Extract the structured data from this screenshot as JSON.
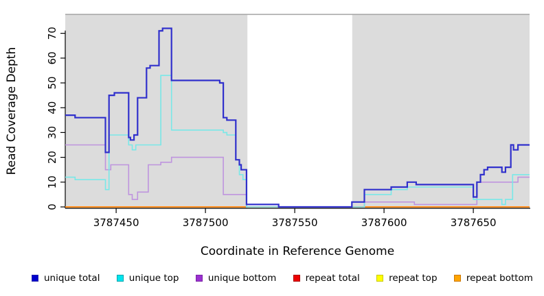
{
  "chart_data": {
    "type": "line",
    "line_style": "step-post",
    "title": "",
    "xlabel": "Coordinate in Reference Genome",
    "ylabel": "Read Coverage Depth",
    "xlim": [
      3787421.5,
      3787681.5
    ],
    "ylim": [
      0,
      77.5
    ],
    "x_ticks": [
      {
        "value": 3787450,
        "label": "3787450"
      },
      {
        "value": 3787500,
        "label": "3787500"
      },
      {
        "value": 3787550,
        "label": "3787550"
      },
      {
        "value": 3787600,
        "label": "3787600"
      },
      {
        "value": 3787650,
        "label": "3787650"
      }
    ],
    "y_ticks": [
      0,
      10,
      20,
      30,
      40,
      50,
      60,
      70
    ],
    "band_color": "#DCDCDC",
    "top_border_color": "#A3A3A3",
    "bands": [
      {
        "from": 3787421.5,
        "to": 3787523.5
      },
      {
        "from": 3787582.2,
        "to": 3787681.5
      }
    ],
    "series": [
      {
        "name": "repeat total",
        "color": "#DD0000",
        "width": 1.5,
        "steps": [
          [
            3787421.5,
            0
          ]
        ]
      },
      {
        "name": "repeat top",
        "color": "#F2F200",
        "width": 1.5,
        "steps": [
          [
            3787421.5,
            0
          ]
        ]
      },
      {
        "name": "repeat bottom",
        "color": "#FF8C1A",
        "width": 2,
        "steps": [
          [
            3787421.5,
            0
          ]
        ]
      },
      {
        "name": "unique bottom",
        "color": "#BE94DE",
        "width": 1.6,
        "steps": [
          [
            3787421.5,
            25
          ],
          [
            3787444,
            15
          ],
          [
            3787447,
            17
          ],
          [
            3787457,
            5
          ],
          [
            3787459,
            3
          ],
          [
            3787462,
            6
          ],
          [
            3787468,
            17
          ],
          [
            3787475,
            18
          ],
          [
            3787481,
            20
          ],
          [
            3787510,
            5
          ],
          [
            3787523,
            0
          ],
          [
            3787589,
            2
          ],
          [
            3787617,
            1
          ],
          [
            3787652,
            10
          ],
          [
            3787675,
            12
          ]
        ]
      },
      {
        "name": "unique top",
        "color": "#78E8E8",
        "width": 1.6,
        "steps": [
          [
            3787421.5,
            12
          ],
          [
            3787427,
            11
          ],
          [
            3787444,
            7
          ],
          [
            3787446,
            29
          ],
          [
            3787457,
            25
          ],
          [
            3787459,
            23
          ],
          [
            3787461,
            25
          ],
          [
            3787475,
            53
          ],
          [
            3787481,
            31
          ],
          [
            3787510,
            30
          ],
          [
            3787512,
            29
          ],
          [
            3787517,
            19
          ],
          [
            3787519,
            13
          ],
          [
            3787521,
            11
          ],
          [
            3787523,
            0
          ],
          [
            3787589,
            5
          ],
          [
            3787604,
            7
          ],
          [
            3787613,
            8
          ],
          [
            3787650,
            3
          ],
          [
            3787666,
            1
          ],
          [
            3787668,
            3
          ],
          [
            3787672,
            13
          ]
        ]
      },
      {
        "name": "unique total",
        "color": "#3030CC",
        "width": 2.2,
        "steps": [
          [
            3787421.5,
            37
          ],
          [
            3787427,
            36
          ],
          [
            3787444,
            22
          ],
          [
            3787446,
            45
          ],
          [
            3787449,
            46
          ],
          [
            3787457,
            28
          ],
          [
            3787458,
            27
          ],
          [
            3787460,
            29
          ],
          [
            3787462,
            44
          ],
          [
            3787467,
            56
          ],
          [
            3787469,
            57
          ],
          [
            3787474,
            71
          ],
          [
            3787476,
            72
          ],
          [
            3787481,
            51
          ],
          [
            3787508,
            50
          ],
          [
            3787510,
            36
          ],
          [
            3787512,
            35
          ],
          [
            3787517,
            19
          ],
          [
            3787519,
            17
          ],
          [
            3787520,
            15
          ],
          [
            3787523,
            1
          ],
          [
            3787541,
            0
          ],
          [
            3787582,
            2
          ],
          [
            3787589,
            7
          ],
          [
            3787604,
            8
          ],
          [
            3787613,
            10
          ],
          [
            3787618,
            9
          ],
          [
            3787650,
            4
          ],
          [
            3787652,
            10
          ],
          [
            3787654,
            13
          ],
          [
            3787656,
            15
          ],
          [
            3787658,
            16
          ],
          [
            3787666,
            14
          ],
          [
            3787668,
            16
          ],
          [
            3787671,
            25
          ],
          [
            3787672.5,
            23
          ],
          [
            3787675,
            25
          ]
        ]
      }
    ],
    "legend": [
      {
        "label": "unique total",
        "fill": "#0000CC",
        "border": "#2323AF"
      },
      {
        "label": "unique top",
        "fill": "#00E5EE",
        "border": "#00A5AD"
      },
      {
        "label": "unique bottom",
        "fill": "#9B30D0",
        "border": "#7A23A6"
      },
      {
        "label": "repeat total",
        "fill": "#EE0000",
        "border": "#AA0000"
      },
      {
        "label": "repeat top",
        "fill": "#FFFF00",
        "border": "#C8C800"
      },
      {
        "label": "repeat bottom",
        "fill": "#FFA500",
        "border": "#CC7700"
      }
    ],
    "legend_position": "bottom"
  }
}
